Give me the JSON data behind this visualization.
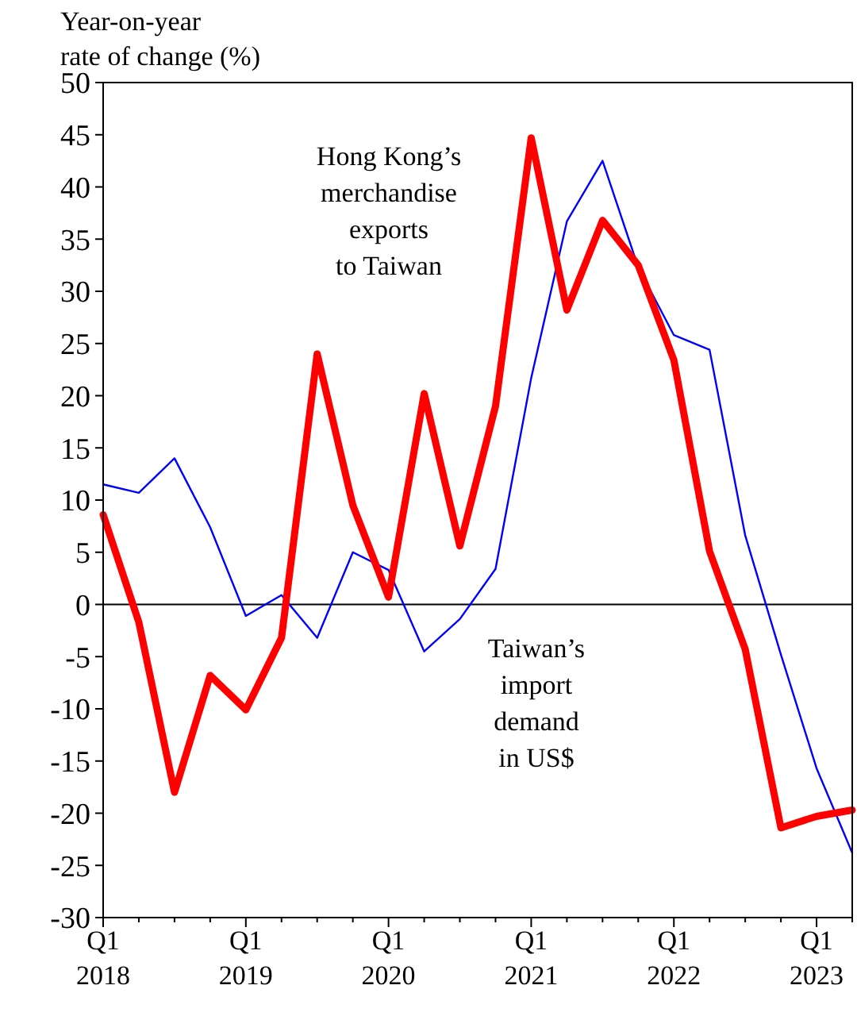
{
  "chart_data": {
    "type": "line",
    "ylabel": "Year-on-year rate of change (%)",
    "categories": [
      "Q1\n2018",
      null,
      null,
      null,
      "Q1\n2019",
      null,
      null,
      null,
      "Q1\n2020",
      null,
      null,
      null,
      "Q1\n2021",
      null,
      null,
      null,
      "Q1\n2022",
      null,
      null,
      null,
      "Q1\n2023",
      null
    ],
    "series": [
      {
        "name": "Taiwan’s import demand in US$",
        "color": "#0000ff",
        "values": [
          11.5,
          10.7,
          14,
          7.4,
          -1.1,
          0.9,
          -3.2,
          5,
          3.3,
          -4.5,
          -1.4,
          3.4,
          21.7,
          36.7,
          42.5,
          32.3,
          25.8,
          24.4,
          6.6,
          -4.8,
          -15.7,
          -23.8
        ]
      },
      {
        "name": "Hong Kong’s merchandise exports to Taiwan",
        "color": "#ff0000",
        "values": [
          8.6,
          -1.7,
          -18,
          -6.8,
          -10.1,
          -3.2,
          24,
          9.5,
          0.7,
          20.2,
          5.6,
          19,
          44.7,
          28.2,
          36.8,
          32.5,
          23.4,
          5.1,
          -4.3,
          -21.4,
          -20.3,
          -19.7
        ]
      }
    ],
    "ylim": [
      -30,
      50
    ],
    "yticks": [
      -30,
      -25,
      -20,
      -15,
      -10,
      -5,
      0,
      5,
      10,
      15,
      20,
      25,
      30,
      35,
      40,
      45,
      50
    ],
    "ref_lines": [
      {
        "axis": "y",
        "value": 0,
        "color": "#000000"
      }
    ],
    "grid": false,
    "legend": false
  }
}
